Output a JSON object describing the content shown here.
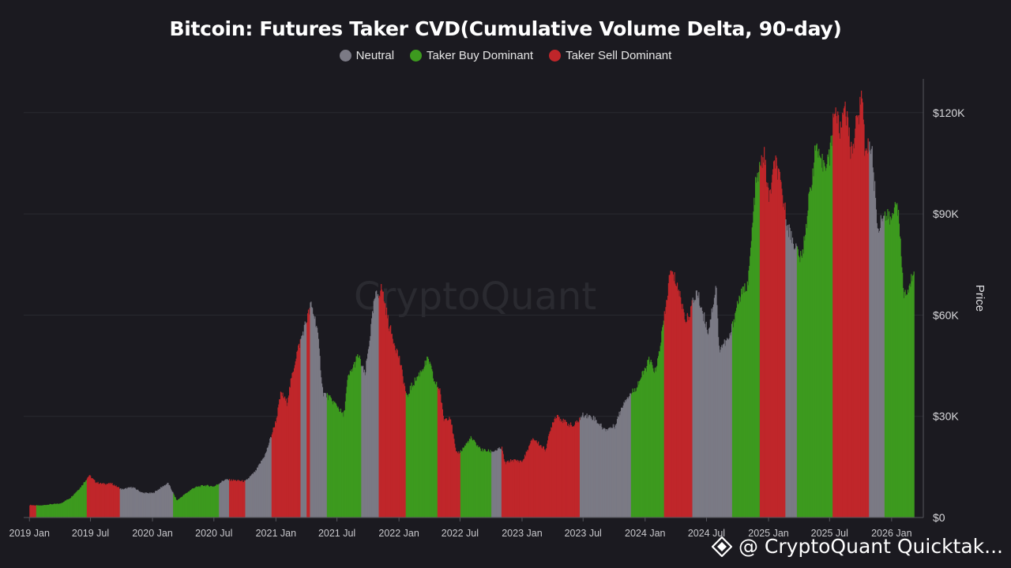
{
  "title": "Bitcoin: Futures Taker CVD(Cumulative Volume Delta, 90-day)",
  "legend": [
    {
      "label": "Neutral",
      "color": "#7b7a85"
    },
    {
      "label": "Taker Buy Dominant",
      "color": "#3d9a1f"
    },
    {
      "label": "Taker Sell Dominant",
      "color": "#c0262a"
    }
  ],
  "watermark": "CryptoQuant",
  "footer": {
    "text": "@ CryptoQuant Quicktak...",
    "icon": "cryptoquant-logo-icon"
  },
  "chart_data": {
    "type": "bar",
    "title": "Bitcoin: Futures Taker CVD(Cumulative Volume Delta, 90-day)",
    "ylabel": "Price",
    "xlabel": "",
    "ylim": [
      0,
      130000
    ],
    "y_ticks": [
      "$0",
      "$30K",
      "$60K",
      "$90K",
      "$120K"
    ],
    "y_tick_values": [
      0,
      30000,
      60000,
      90000,
      120000
    ],
    "x_ticks": [
      "2019 Jan",
      "2019 Jul",
      "2020 Jan",
      "2020 Jul",
      "2021 Jan",
      "2021 Jul",
      "2022 Jan",
      "2022 Jul",
      "2023 Jan",
      "2023 Jul",
      "2024 Jan",
      "2024 Jul",
      "2025 Jan",
      "2025 Jul",
      "2026 Jan"
    ],
    "x_range": [
      "2018-12-15",
      "2026-03-15"
    ],
    "grid": true,
    "legend_position": "top-center",
    "colors": {
      "N": "#7b7a85",
      "B": "#3d9a1f",
      "S": "#c0262a"
    },
    "price_series": [
      [
        "2019-01-01",
        3700
      ],
      [
        "2019-02-01",
        3500
      ],
      [
        "2019-03-01",
        3900
      ],
      [
        "2019-04-01",
        4100
      ],
      [
        "2019-05-01",
        5800
      ],
      [
        "2019-06-01",
        9000
      ],
      [
        "2019-06-26",
        12500
      ],
      [
        "2019-07-15",
        10500
      ],
      [
        "2019-08-01",
        10000
      ],
      [
        "2019-09-01",
        10000
      ],
      [
        "2019-10-01",
        8300
      ],
      [
        "2019-11-01",
        9000
      ],
      [
        "2019-12-01",
        7300
      ],
      [
        "2020-01-01",
        7200
      ],
      [
        "2020-02-01",
        9300
      ],
      [
        "2020-02-15",
        10200
      ],
      [
        "2020-03-12",
        5000
      ],
      [
        "2020-04-01",
        6600
      ],
      [
        "2020-05-01",
        8800
      ],
      [
        "2020-06-01",
        9500
      ],
      [
        "2020-07-01",
        9200
      ],
      [
        "2020-08-01",
        11200
      ],
      [
        "2020-09-01",
        11000
      ],
      [
        "2020-10-01",
        10700
      ],
      [
        "2020-11-01",
        13700
      ],
      [
        "2020-12-01",
        19000
      ],
      [
        "2021-01-01",
        29000
      ],
      [
        "2021-01-15",
        37000
      ],
      [
        "2021-02-01",
        34000
      ],
      [
        "2021-03-01",
        48000
      ],
      [
        "2021-04-14",
        63000
      ],
      [
        "2021-05-01",
        57000
      ],
      [
        "2021-05-19",
        37000
      ],
      [
        "2021-06-01",
        36000
      ],
      [
        "2021-07-01",
        33000
      ],
      [
        "2021-07-20",
        30000
      ],
      [
        "2021-08-01",
        41000
      ],
      [
        "2021-09-01",
        48000
      ],
      [
        "2021-09-21",
        42000
      ],
      [
        "2021-10-20",
        65000
      ],
      [
        "2021-11-10",
        68000
      ],
      [
        "2021-12-01",
        57000
      ],
      [
        "2022-01-01",
        47000
      ],
      [
        "2022-01-24",
        35000
      ],
      [
        "2022-02-01",
        38000
      ],
      [
        "2022-03-28",
        47000
      ],
      [
        "2022-04-15",
        40000
      ],
      [
        "2022-05-01",
        38000
      ],
      [
        "2022-05-12",
        29000
      ],
      [
        "2022-06-01",
        30000
      ],
      [
        "2022-06-18",
        19000
      ],
      [
        "2022-07-01",
        19500
      ],
      [
        "2022-08-01",
        23500
      ],
      [
        "2022-09-01",
        20000
      ],
      [
        "2022-10-01",
        19500
      ],
      [
        "2022-11-01",
        20500
      ],
      [
        "2022-11-10",
        16000
      ],
      [
        "2022-12-01",
        17000
      ],
      [
        "2023-01-01",
        16600
      ],
      [
        "2023-02-01",
        23500
      ],
      [
        "2023-03-10",
        20000
      ],
      [
        "2023-04-01",
        28500
      ],
      [
        "2023-04-14",
        30500
      ],
      [
        "2023-05-01",
        28500
      ],
      [
        "2023-06-01",
        27000
      ],
      [
        "2023-07-01",
        30500
      ],
      [
        "2023-08-01",
        29500
      ],
      [
        "2023-09-01",
        26000
      ],
      [
        "2023-10-01",
        27000
      ],
      [
        "2023-11-01",
        35000
      ],
      [
        "2023-12-01",
        38000
      ],
      [
        "2024-01-01",
        44000
      ],
      [
        "2024-01-11",
        46500
      ],
      [
        "2024-02-01",
        43000
      ],
      [
        "2024-03-01",
        62000
      ],
      [
        "2024-03-14",
        73000
      ],
      [
        "2024-04-01",
        70000
      ],
      [
        "2024-05-01",
        58000
      ],
      [
        "2024-06-01",
        67000
      ],
      [
        "2024-07-05",
        55000
      ],
      [
        "2024-07-29",
        69000
      ],
      [
        "2024-08-05",
        50000
      ],
      [
        "2024-09-06",
        53000
      ],
      [
        "2024-10-01",
        64000
      ],
      [
        "2024-11-01",
        70000
      ],
      [
        "2024-11-22",
        98000
      ],
      [
        "2024-12-17",
        108000
      ],
      [
        "2025-01-01",
        94000
      ],
      [
        "2025-01-20",
        106000
      ],
      [
        "2025-02-01",
        100000
      ],
      [
        "2025-03-01",
        85000
      ],
      [
        "2025-04-08",
        76000
      ],
      [
        "2025-05-01",
        95000
      ],
      [
        "2025-05-22",
        111000
      ],
      [
        "2025-06-01",
        104000
      ],
      [
        "2025-07-01",
        107000
      ],
      [
        "2025-07-14",
        122000
      ],
      [
        "2025-08-01",
        114000
      ],
      [
        "2025-08-14",
        124000
      ],
      [
        "2025-09-01",
        108000
      ],
      [
        "2025-10-06",
        126000
      ],
      [
        "2025-10-11",
        110000
      ],
      [
        "2025-11-01",
        110000
      ],
      [
        "2025-11-21",
        84000
      ],
      [
        "2025-12-01",
        90000
      ],
      [
        "2026-01-01",
        88000
      ],
      [
        "2026-01-15",
        96000
      ],
      [
        "2026-02-05",
        66000
      ],
      [
        "2026-02-20",
        67000
      ],
      [
        "2026-03-08",
        75000
      ]
    ],
    "regime_segments": [
      [
        "2019-01-01",
        "S"
      ],
      [
        "2019-01-20",
        "B"
      ],
      [
        "2019-06-20",
        "S"
      ],
      [
        "2019-09-25",
        "N"
      ],
      [
        "2020-03-01",
        "B"
      ],
      [
        "2020-07-15",
        "N"
      ],
      [
        "2020-08-15",
        "S"
      ],
      [
        "2020-10-01",
        "N"
      ],
      [
        "2020-12-18",
        "S"
      ],
      [
        "2021-03-15",
        "N"
      ],
      [
        "2021-04-01",
        "S"
      ],
      [
        "2021-04-12",
        "N"
      ],
      [
        "2021-06-01",
        "B"
      ],
      [
        "2021-09-10",
        "N"
      ],
      [
        "2021-11-01",
        "S"
      ],
      [
        "2022-01-20",
        "B"
      ],
      [
        "2022-04-25",
        "S"
      ],
      [
        "2022-07-01",
        "B"
      ],
      [
        "2022-10-01",
        "N"
      ],
      [
        "2022-11-01",
        "S"
      ],
      [
        "2023-06-20",
        "N"
      ],
      [
        "2023-11-20",
        "B"
      ],
      [
        "2024-02-25",
        "S"
      ],
      [
        "2024-05-20",
        "N"
      ],
      [
        "2024-09-15",
        "B"
      ],
      [
        "2024-12-05",
        "S"
      ],
      [
        "2025-02-20",
        "N"
      ],
      [
        "2025-03-25",
        "B"
      ],
      [
        "2025-07-10",
        "S"
      ],
      [
        "2025-10-25",
        "N"
      ],
      [
        "2025-12-10",
        "B"
      ]
    ]
  }
}
